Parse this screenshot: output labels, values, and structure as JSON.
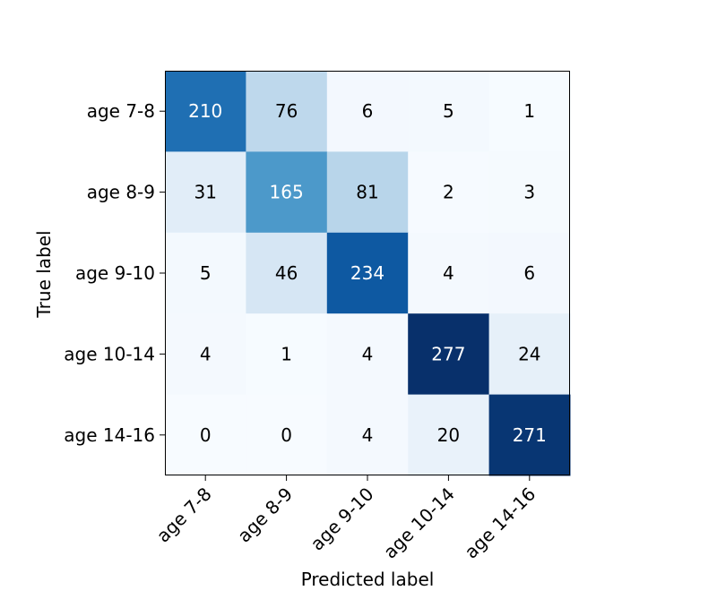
{
  "chart_data": {
    "type": "heatmap",
    "title": "",
    "xlabel": "Predicted label",
    "ylabel": "True label",
    "x_categories": [
      "age 7-8",
      "age 8-9",
      "age 9-10",
      "age 10-14",
      "age 14-16"
    ],
    "y_categories": [
      "age 7-8",
      "age 8-9",
      "age 9-10",
      "age 10-14",
      "age 14-16"
    ],
    "values": [
      [
        210,
        76,
        6,
        5,
        1
      ],
      [
        31,
        165,
        81,
        2,
        3
      ],
      [
        5,
        46,
        234,
        4,
        6
      ],
      [
        4,
        1,
        4,
        277,
        24
      ],
      [
        0,
        0,
        4,
        20,
        271
      ]
    ],
    "colormap": "Blues",
    "colormap_stops": [
      "#f7fbff",
      "#deebf7",
      "#c6dbef",
      "#9ecae1",
      "#6baed6",
      "#4292c6",
      "#2171b5",
      "#08519c",
      "#08306b"
    ],
    "grid": false,
    "legend": "none",
    "text_color_light": "#ffffff",
    "text_color_dark": "#000000"
  }
}
